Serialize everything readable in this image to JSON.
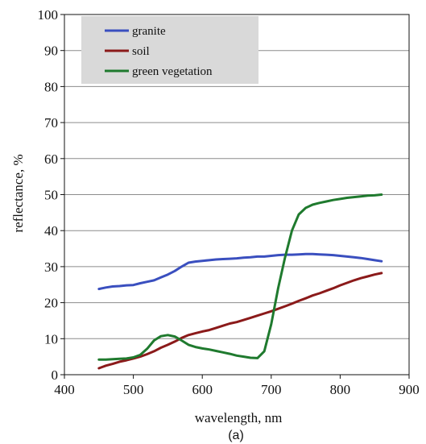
{
  "chart_data": {
    "type": "line",
    "title": "",
    "caption": "(a)",
    "xlabel": "wavelength, nm",
    "ylabel": "reflectance, %",
    "xlim": [
      400,
      900
    ],
    "ylim": [
      0,
      100
    ],
    "xticks": [
      400,
      500,
      600,
      700,
      800,
      900
    ],
    "yticks": [
      0,
      10,
      20,
      30,
      40,
      50,
      60,
      70,
      80,
      90,
      100
    ],
    "grid": "horizontal",
    "legend_position": "top-left",
    "series": [
      {
        "name": "granite",
        "color": "#3a4fbf",
        "x": [
          450,
          460,
          470,
          480,
          490,
          500,
          510,
          520,
          530,
          540,
          550,
          560,
          570,
          580,
          590,
          600,
          610,
          620,
          630,
          640,
          650,
          660,
          670,
          680,
          690,
          700,
          710,
          720,
          730,
          740,
          750,
          760,
          770,
          780,
          790,
          800,
          810,
          820,
          830,
          840,
          850,
          860
        ],
        "values": [
          23.8,
          24.2,
          24.5,
          24.6,
          24.8,
          24.9,
          25.4,
          25.8,
          26.2,
          27.0,
          27.8,
          28.8,
          30.0,
          31.1,
          31.4,
          31.6,
          31.8,
          32.0,
          32.1,
          32.2,
          32.3,
          32.5,
          32.6,
          32.8,
          32.8,
          33.0,
          33.2,
          33.3,
          33.3,
          33.4,
          33.5,
          33.5,
          33.4,
          33.3,
          33.2,
          33.0,
          32.8,
          32.6,
          32.4,
          32.1,
          31.8,
          31.5
        ]
      },
      {
        "name": "soil",
        "color": "#8b1a1a",
        "x": [
          450,
          460,
          470,
          480,
          490,
          500,
          510,
          520,
          530,
          540,
          550,
          560,
          570,
          580,
          590,
          600,
          610,
          620,
          630,
          640,
          650,
          660,
          670,
          680,
          690,
          700,
          710,
          720,
          730,
          740,
          750,
          760,
          770,
          780,
          790,
          800,
          810,
          820,
          830,
          840,
          850,
          860
        ],
        "values": [
          1.8,
          2.5,
          3.0,
          3.6,
          4.0,
          4.5,
          5.0,
          5.7,
          6.5,
          7.5,
          8.3,
          9.2,
          10.2,
          11.0,
          11.5,
          12.0,
          12.4,
          13.0,
          13.6,
          14.2,
          14.6,
          15.2,
          15.8,
          16.4,
          17.0,
          17.6,
          18.3,
          19.0,
          19.7,
          20.5,
          21.2,
          22.0,
          22.6,
          23.3,
          24.0,
          24.8,
          25.5,
          26.2,
          26.8,
          27.3,
          27.8,
          28.2
        ]
      },
      {
        "name": "green vegetation",
        "color": "#1f7a2e",
        "x": [
          450,
          460,
          470,
          480,
          490,
          500,
          510,
          520,
          530,
          540,
          550,
          560,
          570,
          580,
          590,
          600,
          610,
          620,
          630,
          640,
          650,
          660,
          670,
          680,
          690,
          700,
          710,
          720,
          730,
          740,
          750,
          760,
          770,
          780,
          790,
          800,
          810,
          820,
          830,
          840,
          850,
          860
        ],
        "values": [
          4.2,
          4.2,
          4.3,
          4.4,
          4.5,
          4.8,
          5.5,
          7.2,
          9.5,
          10.7,
          11.0,
          10.6,
          9.5,
          8.3,
          7.7,
          7.3,
          7.0,
          6.6,
          6.2,
          5.8,
          5.3,
          5.0,
          4.7,
          4.6,
          6.5,
          14.0,
          24.0,
          32.5,
          40.0,
          44.5,
          46.3,
          47.2,
          47.7,
          48.1,
          48.5,
          48.8,
          49.1,
          49.3,
          49.5,
          49.7,
          49.8,
          50.0
        ]
      }
    ]
  }
}
